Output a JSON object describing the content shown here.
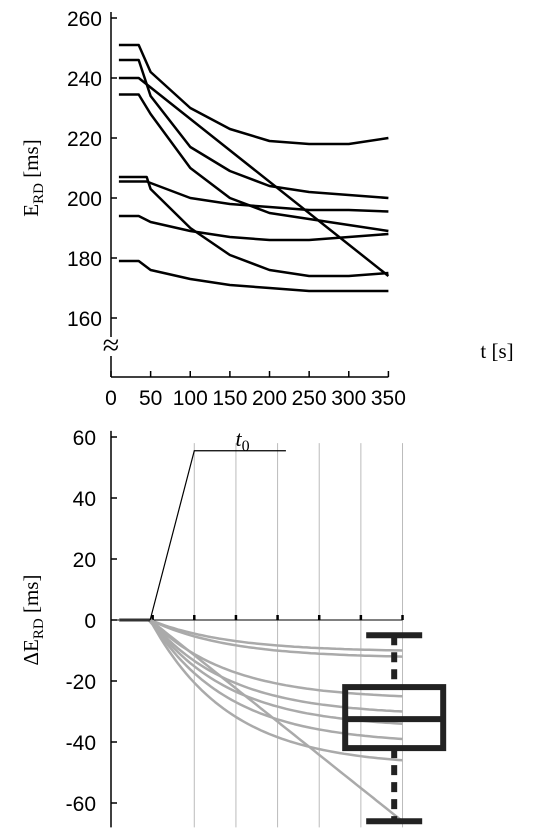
{
  "chart_data": [
    {
      "type": "line",
      "ylabel": "E",
      "ylabel_sub": "RD",
      "ylabel_unit": "[ms]",
      "xlabel": "t [s]",
      "ylim": [
        145,
        262
      ],
      "xlim": [
        0,
        350
      ],
      "yticks": [
        160,
        180,
        200,
        220,
        240,
        260
      ],
      "xticks": [
        0,
        50,
        100,
        150,
        200,
        250,
        300,
        350
      ],
      "axis_break": "≈",
      "grid": false,
      "line_color": "#000000",
      "series": [
        {
          "x": [
            10,
            35,
            50,
            100,
            150,
            200,
            250,
            300,
            350
          ],
          "y": [
            251,
            251,
            242,
            230,
            223,
            219,
            218,
            218,
            220
          ]
        },
        {
          "x": [
            10,
            35,
            50,
            100,
            150,
            200,
            250,
            300,
            350
          ],
          "y": [
            246,
            246,
            234,
            217,
            209,
            204,
            202,
            201,
            200
          ]
        },
        {
          "x": [
            10,
            35,
            350
          ],
          "y": [
            240,
            240,
            174
          ]
        },
        {
          "x": [
            10,
            35,
            50,
            100,
            150,
            200,
            250,
            300,
            350
          ],
          "y": [
            234.5,
            234.5,
            228,
            210,
            200,
            195,
            193,
            191,
            189
          ]
        },
        {
          "x": [
            10,
            45,
            50,
            100,
            150,
            200,
            250,
            300,
            350
          ],
          "y": [
            207,
            207,
            203,
            190,
            181,
            176,
            174,
            174,
            175
          ]
        },
        {
          "x": [
            10,
            45,
            50,
            100,
            150,
            200,
            250,
            300,
            350
          ],
          "y": [
            205.5,
            205.5,
            205,
            200,
            198,
            197,
            196,
            196,
            195.5
          ]
        },
        {
          "x": [
            10,
            35,
            50,
            100,
            150,
            200,
            250,
            300,
            350
          ],
          "y": [
            194,
            194,
            192,
            189,
            187,
            186,
            186,
            187,
            188
          ]
        },
        {
          "x": [
            10,
            35,
            50,
            100,
            150,
            200,
            250,
            300,
            350
          ],
          "y": [
            179,
            179,
            176,
            173,
            171,
            170,
            169,
            169,
            169
          ]
        }
      ]
    },
    {
      "type": "line",
      "ylabel": "ΔE",
      "ylabel_sub": "RD",
      "ylabel_unit": "[ms]",
      "ylim": [
        -68,
        62
      ],
      "xlim": [
        0,
        350
      ],
      "yticks": [
        -60,
        -40,
        -20,
        0,
        20,
        40,
        60
      ],
      "annotation": "t",
      "annotation_sub": "0",
      "annotation_x": 47,
      "vlines": [
        100,
        150,
        200,
        250,
        300,
        350
      ],
      "line_color": "#aaaaaa",
      "series": [
        {
          "x": [
            10,
            47,
            100,
            200,
            350
          ],
          "y": [
            0,
            0,
            -5,
            -8,
            -10
          ]
        },
        {
          "x": [
            10,
            47,
            100,
            200,
            350
          ],
          "y": [
            0,
            0,
            -8,
            -10,
            -12
          ]
        },
        {
          "x": [
            10,
            47,
            100,
            200,
            350
          ],
          "y": [
            0,
            0,
            -15,
            -22,
            -25
          ]
        },
        {
          "x": [
            10,
            47,
            100,
            200,
            350
          ],
          "y": [
            0,
            0,
            -18,
            -26,
            -30
          ]
        },
        {
          "x": [
            10,
            47,
            100,
            200,
            350
          ],
          "y": [
            0,
            0,
            -20,
            -30,
            -34
          ]
        },
        {
          "x": [
            10,
            47,
            100,
            200,
            350
          ],
          "y": [
            0,
            0,
            -22,
            -33,
            -39
          ]
        },
        {
          "x": [
            10,
            47,
            100,
            200,
            350
          ],
          "y": [
            0,
            0,
            -25,
            -38,
            -46
          ]
        },
        {
          "x": [
            10,
            47,
            100,
            200,
            350
          ],
          "y": [
            0,
            0,
            -30,
            -50,
            -66
          ]
        }
      ],
      "boxplot": {
        "x": 340,
        "min": -66,
        "q1": -42,
        "median": -32.5,
        "q3": -22,
        "max": -5
      }
    }
  ]
}
